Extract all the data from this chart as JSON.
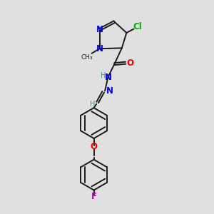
{
  "bg_color": "#e0e0e0",
  "bond_color": "#1a1a1a",
  "N_color": "#0000ee",
  "O_color": "#ee0000",
  "Cl_color": "#00aa00",
  "F_color": "#bb00bb",
  "H_color": "#558888",
  "font_size": 8.5,
  "small_font": 7.0,
  "line_width": 1.4,
  "double_sep": 0.1,
  "figsize": [
    3.0,
    3.0
  ],
  "dpi": 100,
  "xlim": [
    0,
    10
  ],
  "ylim": [
    0,
    10
  ]
}
